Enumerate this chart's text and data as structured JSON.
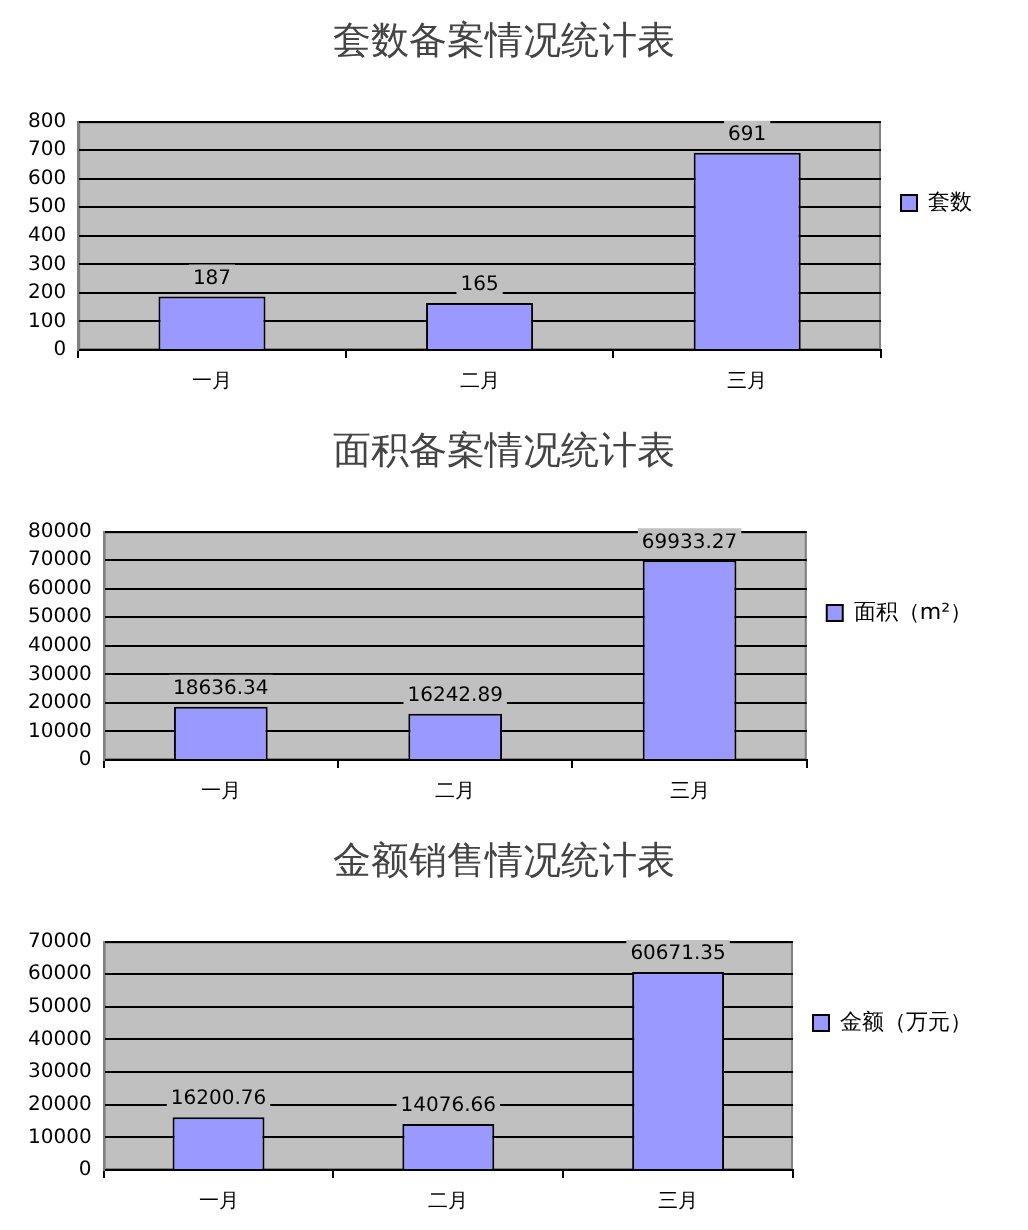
{
  "chart_data": [
    {
      "type": "bar",
      "title": "套数备案情况统计表",
      "categories": [
        "一月",
        "二月",
        "三月"
      ],
      "series": [
        {
          "name": "套数",
          "color": "#9999ff",
          "values": [
            187,
            165,
            691
          ]
        }
      ],
      "ylim": [
        0,
        800
      ],
      "yticks": [
        0,
        100,
        200,
        300,
        400,
        500,
        600,
        700,
        800
      ],
      "grid": "y",
      "legend": "right",
      "data_labels": true
    },
    {
      "type": "bar",
      "title": "面积备案情况统计表",
      "categories": [
        "一月",
        "二月",
        "三月"
      ],
      "series": [
        {
          "name": "面积（m²）",
          "color": "#9999ff",
          "values": [
            18636.34,
            16242.89,
            69933.27
          ]
        }
      ],
      "ylim": [
        0,
        80000
      ],
      "yticks": [
        0,
        10000,
        20000,
        30000,
        40000,
        50000,
        60000,
        70000,
        80000
      ],
      "grid": "y",
      "legend": "right",
      "data_labels": true
    },
    {
      "type": "bar",
      "title": "金额销售情况统计表",
      "categories": [
        "一月",
        "二月",
        "三月"
      ],
      "series": [
        {
          "name": "金额（万元）",
          "color": "#9999ff",
          "values": [
            16200.76,
            14076.66,
            60671.35
          ]
        }
      ],
      "ylim": [
        0,
        70000
      ],
      "yticks": [
        0,
        10000,
        20000,
        30000,
        40000,
        50000,
        60000,
        70000
      ],
      "grid": "y",
      "legend": "right",
      "data_labels": true
    }
  ]
}
